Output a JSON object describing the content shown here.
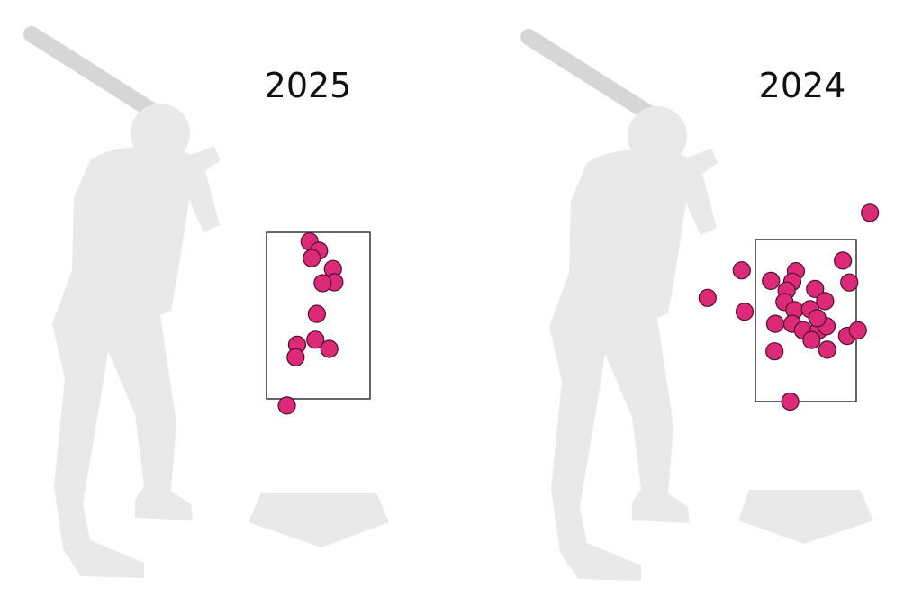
{
  "chart_data": [
    {
      "type": "scatter",
      "title": "2025",
      "xlim": [
        -1.5,
        1.5
      ],
      "ylim": [
        1.0,
        4.0
      ],
      "strike_zone": {
        "x": [
          -0.708,
          0.708
        ],
        "y": [
          1.5,
          3.5
        ]
      },
      "grid": false,
      "colors": {
        "point": "#dc2a78",
        "point_stroke": "#4a1030",
        "silhouette": "#e9e9e9",
        "bat": "#d6d6d6",
        "zone": "#333333"
      },
      "points": [
        {
          "x": -0.12,
          "y": 3.39
        },
        {
          "x": 0.01,
          "y": 3.28
        },
        {
          "x": -0.09,
          "y": 3.19
        },
        {
          "x": 0.2,
          "y": 3.06
        },
        {
          "x": 0.22,
          "y": 2.9
        },
        {
          "x": 0.06,
          "y": 2.89
        },
        {
          "x": -0.02,
          "y": 2.52
        },
        {
          "x": -0.04,
          "y": 2.21
        },
        {
          "x": -0.29,
          "y": 2.15
        },
        {
          "x": -0.31,
          "y": 2.0
        },
        {
          "x": 0.15,
          "y": 2.1
        },
        {
          "x": -0.43,
          "y": 1.42
        }
      ]
    },
    {
      "type": "scatter",
      "title": "2024",
      "xlim": [
        -1.5,
        1.5
      ],
      "ylim": [
        1.0,
        4.0
      ],
      "strike_zone": {
        "x": [
          -0.708,
          0.708
        ],
        "y": [
          1.5,
          3.5
        ]
      },
      "grid": false,
      "colors": {
        "point": "#dc2a78",
        "point_stroke": "#4a1030",
        "silhouette": "#e9e9e9",
        "bat": "#d6d6d6",
        "zone": "#333333"
      },
      "points": [
        {
          "x": 0.9,
          "y": 3.83
        },
        {
          "x": 0.52,
          "y": 3.24
        },
        {
          "x": 0.61,
          "y": 2.97
        },
        {
          "x": -0.9,
          "y": 3.12
        },
        {
          "x": -1.38,
          "y": 2.78
        },
        {
          "x": -0.86,
          "y": 2.61
        },
        {
          "x": -0.49,
          "y": 2.99
        },
        {
          "x": -0.14,
          "y": 3.11
        },
        {
          "x": -0.19,
          "y": 2.98
        },
        {
          "x": -0.27,
          "y": 2.87
        },
        {
          "x": -0.3,
          "y": 2.73
        },
        {
          "x": 0.13,
          "y": 2.89
        },
        {
          "x": 0.27,
          "y": 2.74
        },
        {
          "x": -0.16,
          "y": 2.63
        },
        {
          "x": 0.06,
          "y": 2.64
        },
        {
          "x": -0.43,
          "y": 2.46
        },
        {
          "x": -0.19,
          "y": 2.46
        },
        {
          "x": -0.04,
          "y": 2.38
        },
        {
          "x": 0.18,
          "y": 2.38
        },
        {
          "x": 0.29,
          "y": 2.43
        },
        {
          "x": 0.16,
          "y": 2.53
        },
        {
          "x": 0.08,
          "y": 2.26
        },
        {
          "x": 0.3,
          "y": 2.14
        },
        {
          "x": 0.58,
          "y": 2.31
        },
        {
          "x": 0.73,
          "y": 2.38
        },
        {
          "x": -0.44,
          "y": 2.12
        },
        {
          "x": -0.22,
          "y": 1.5
        }
      ]
    }
  ]
}
